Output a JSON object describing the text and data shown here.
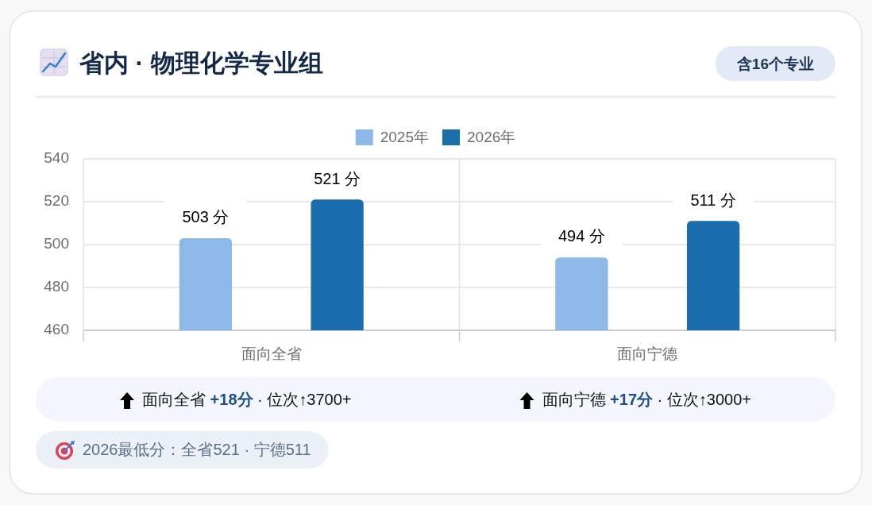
{
  "chart_data": {
    "type": "bar",
    "title": "省内 · 物理化学专业组",
    "categories": [
      "面向全省",
      "面向宁德"
    ],
    "series": [
      {
        "name": "2025年",
        "color": "#8eb8e8",
        "values": [
          503,
          494
        ],
        "value_labels": [
          "503 分",
          "494 分"
        ]
      },
      {
        "name": "2026年",
        "color": "#1b6eae",
        "values": [
          521,
          511
        ],
        "value_labels": [
          "521 分",
          "511 分"
        ]
      }
    ],
    "ylim": [
      460,
      540
    ],
    "yticks": [
      460,
      480,
      500,
      520,
      540
    ],
    "grid": true,
    "legend": "top",
    "annotations": [
      "含16个专业",
      "面向全省 +18分 · 位次↑3700+",
      "面向宁德 +17分 · 位次↑3000+",
      "2026最低分：全省521 · 宁德511"
    ]
  }
}
